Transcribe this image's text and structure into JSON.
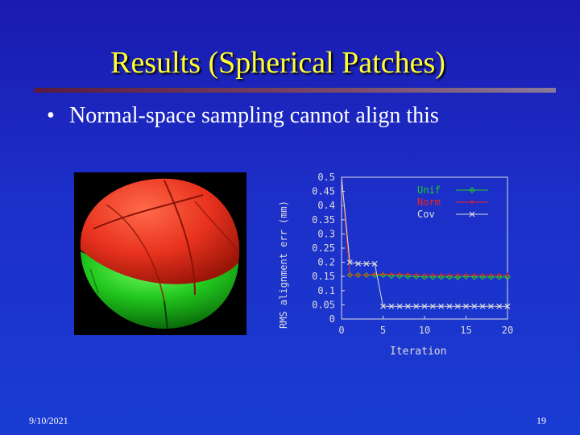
{
  "slide": {
    "title": "Results (Spherical Patches)",
    "bullet_symbol": "•",
    "bullet": "Normal-space sampling cannot align this",
    "date": "9/10/2021",
    "page_number": "19"
  },
  "colors": {
    "title": "#ffff33",
    "text": "#ffffff",
    "sphere_red": "#e8321e",
    "sphere_green": "#22c81e",
    "unif": "#22cc22",
    "norm": "#ee2222",
    "cov": "#dddddd"
  },
  "chart_data": {
    "type": "line",
    "xlabel": "Iteration",
    "ylabel": "RMS alignment err (mm)",
    "xlim": [
      0,
      20
    ],
    "ylim": [
      0,
      0.5
    ],
    "xticks": [
      0,
      5,
      10,
      15,
      20
    ],
    "yticks": [
      0,
      0.05,
      0.1,
      0.15,
      0.2,
      0.25,
      0.3,
      0.35,
      0.4,
      0.45,
      0.5
    ],
    "grid": false,
    "legend_position": "top-right",
    "x": [
      0,
      1,
      2,
      3,
      4,
      5,
      6,
      7,
      8,
      9,
      10,
      11,
      12,
      13,
      14,
      15,
      16,
      17,
      18,
      19,
      20
    ],
    "series": [
      {
        "name": "Unif",
        "marker": "diamond",
        "color": "#22cc22",
        "values": [
          0.5,
          0.155,
          0.155,
          0.155,
          0.155,
          0.155,
          0.152,
          0.152,
          0.15,
          0.15,
          0.148,
          0.148,
          0.148,
          0.148,
          0.147,
          0.15,
          0.148,
          0.148,
          0.148,
          0.148,
          0.148
        ]
      },
      {
        "name": "Norm",
        "marker": "plus",
        "color": "#ee2222",
        "values": [
          0.5,
          0.155,
          0.155,
          0.155,
          0.158,
          0.158,
          0.158,
          0.158,
          0.158,
          0.155,
          0.155,
          0.155,
          0.155,
          0.155,
          0.155,
          0.155,
          0.155,
          0.155,
          0.155,
          0.155,
          0.155
        ]
      },
      {
        "name": "Cov",
        "marker": "x",
        "color": "#dddddd",
        "values": [
          0.5,
          0.2,
          0.195,
          0.195,
          0.195,
          0.045,
          0.045,
          0.045,
          0.045,
          0.045,
          0.045,
          0.045,
          0.045,
          0.045,
          0.045,
          0.045,
          0.045,
          0.045,
          0.045,
          0.045,
          0.045
        ]
      }
    ]
  }
}
